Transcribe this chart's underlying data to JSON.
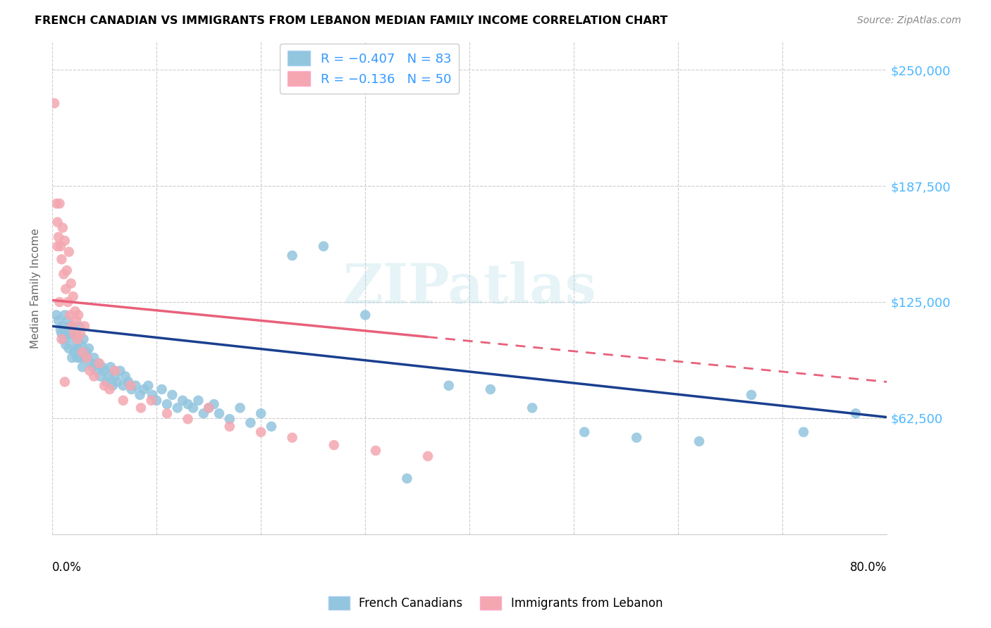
{
  "title": "FRENCH CANADIAN VS IMMIGRANTS FROM LEBANON MEDIAN FAMILY INCOME CORRELATION CHART",
  "source": "Source: ZipAtlas.com",
  "ylabel": "Median Family Income",
  "yticks": [
    0,
    62500,
    125000,
    187500,
    250000
  ],
  "ytick_labels": [
    "",
    "$62,500",
    "$125,000",
    "$187,500",
    "$250,000"
  ],
  "xmin": 0.0,
  "xmax": 0.8,
  "ymin": 0,
  "ymax": 265000,
  "blue_color": "#92c5de",
  "pink_color": "#f4a7b0",
  "blue_line_color": "#1a3f8f",
  "pink_line_color": "#e8607a",
  "watermark": "ZIPatlas",
  "blue_scatter_x": [
    0.004,
    0.006,
    0.008,
    0.009,
    0.01,
    0.011,
    0.012,
    0.013,
    0.014,
    0.015,
    0.016,
    0.017,
    0.018,
    0.019,
    0.02,
    0.021,
    0.022,
    0.023,
    0.024,
    0.025,
    0.026,
    0.027,
    0.028,
    0.029,
    0.03,
    0.031,
    0.033,
    0.035,
    0.037,
    0.039,
    0.04,
    0.042,
    0.044,
    0.046,
    0.048,
    0.05,
    0.052,
    0.054,
    0.056,
    0.058,
    0.06,
    0.062,
    0.065,
    0.068,
    0.07,
    0.073,
    0.076,
    0.08,
    0.084,
    0.088,
    0.092,
    0.096,
    0.1,
    0.105,
    0.11,
    0.115,
    0.12,
    0.125,
    0.13,
    0.135,
    0.14,
    0.145,
    0.15,
    0.155,
    0.16,
    0.17,
    0.18,
    0.19,
    0.2,
    0.21,
    0.23,
    0.26,
    0.3,
    0.34,
    0.38,
    0.42,
    0.46,
    0.51,
    0.56,
    0.62,
    0.67,
    0.72,
    0.77
  ],
  "blue_scatter_y": [
    118000,
    115000,
    110000,
    108000,
    112000,
    105000,
    118000,
    102000,
    108000,
    115000,
    100000,
    108000,
    112000,
    95000,
    105000,
    98000,
    100000,
    108000,
    95000,
    100000,
    112000,
    95000,
    102000,
    90000,
    105000,
    95000,
    98000,
    100000,
    92000,
    90000,
    95000,
    88000,
    92000,
    85000,
    90000,
    88000,
    82000,
    85000,
    90000,
    80000,
    85000,
    82000,
    88000,
    80000,
    85000,
    82000,
    78000,
    80000,
    75000,
    78000,
    80000,
    75000,
    72000,
    78000,
    70000,
    75000,
    68000,
    72000,
    70000,
    68000,
    72000,
    65000,
    68000,
    70000,
    65000,
    62000,
    68000,
    60000,
    65000,
    58000,
    150000,
    155000,
    118000,
    30000,
    80000,
    78000,
    68000,
    55000,
    52000,
    50000,
    75000,
    55000,
    65000
  ],
  "pink_scatter_x": [
    0.002,
    0.004,
    0.005,
    0.006,
    0.007,
    0.008,
    0.009,
    0.01,
    0.011,
    0.012,
    0.013,
    0.014,
    0.015,
    0.016,
    0.017,
    0.018,
    0.019,
    0.02,
    0.021,
    0.022,
    0.023,
    0.024,
    0.025,
    0.027,
    0.029,
    0.031,
    0.033,
    0.036,
    0.04,
    0.045,
    0.05,
    0.055,
    0.06,
    0.068,
    0.075,
    0.085,
    0.095,
    0.11,
    0.13,
    0.15,
    0.17,
    0.2,
    0.23,
    0.27,
    0.31,
    0.36,
    0.005,
    0.007,
    0.009,
    0.012
  ],
  "pink_scatter_y": [
    232000,
    178000,
    168000,
    160000,
    178000,
    155000,
    148000,
    165000,
    140000,
    158000,
    132000,
    142000,
    125000,
    152000,
    118000,
    135000,
    112000,
    128000,
    108000,
    120000,
    115000,
    105000,
    118000,
    108000,
    98000,
    112000,
    95000,
    88000,
    85000,
    92000,
    80000,
    78000,
    88000,
    72000,
    80000,
    68000,
    72000,
    65000,
    62000,
    68000,
    58000,
    55000,
    52000,
    48000,
    45000,
    42000,
    155000,
    125000,
    105000,
    82000
  ],
  "blue_trend_x0": 0.0,
  "blue_trend_x1": 0.8,
  "blue_trend_y0": 112000,
  "blue_trend_y1": 63000,
  "pink_trend_x0": 0.0,
  "pink_trend_x1": 0.8,
  "pink_trend_y0": 126000,
  "pink_trend_y1": 82000
}
